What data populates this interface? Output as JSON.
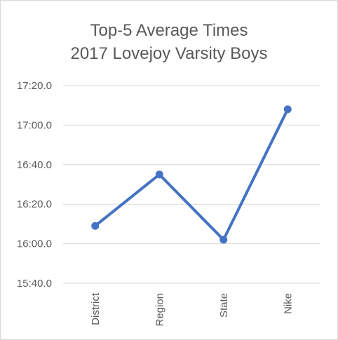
{
  "chart_data": {
    "type": "line",
    "title_lines": [
      "Top-5 Average Times",
      "2017 Lovejoy Varsity Boys"
    ],
    "categories": [
      "District",
      "Region",
      "State",
      "Nike"
    ],
    "series": [
      {
        "values": [
          "16:09.0",
          "16:35.0",
          "16:02.0",
          "17:08.0"
        ],
        "seconds": [
          969,
          995,
          962,
          1028
        ],
        "color": "#4472c4",
        "marker": "circle"
      }
    ],
    "y_ticks": [
      "15:40.0",
      "16:00.0",
      "16:20.0",
      "16:40.0",
      "17:00.0",
      "17:20.0"
    ],
    "ylim_seconds": [
      940,
      1040
    ],
    "grid": true,
    "legend": "none"
  }
}
